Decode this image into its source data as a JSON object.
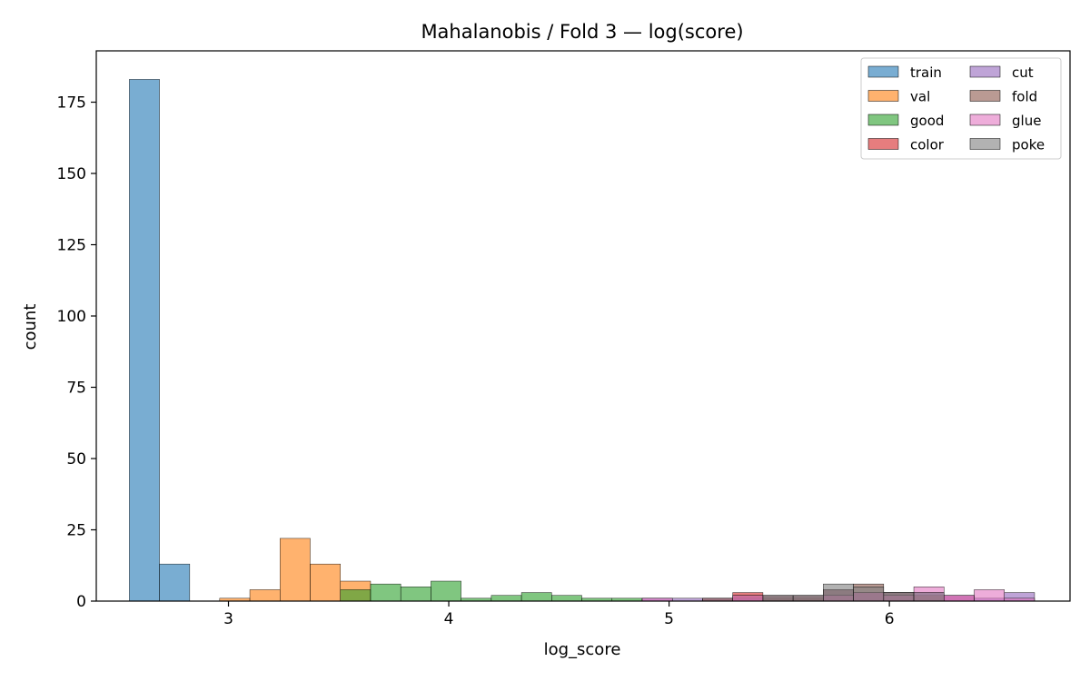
{
  "chart_data": {
    "type": "bar",
    "subtype": "overlaid-histogram",
    "title": "Mahalanobis / Fold 3 — log(score)",
    "xlabel": "log_score",
    "ylabel": "count",
    "xlim": [
      2.4,
      6.82
    ],
    "ylim": [
      0,
      193
    ],
    "bin_width": 0.137,
    "x_ticks": [
      3,
      4,
      5,
      6
    ],
    "y_ticks": [
      0,
      25,
      50,
      75,
      100,
      125,
      150,
      175
    ],
    "bar_alpha": 0.6,
    "grid": false,
    "legend": {
      "placement": "top-right",
      "columns": 2
    },
    "series": [
      {
        "name": "train",
        "color": "#1f77b4",
        "bins": [
          [
            2.55,
            183
          ],
          [
            2.687,
            13
          ]
        ]
      },
      {
        "name": "val",
        "color": "#ff7f0e",
        "bins": [
          [
            2.96,
            1
          ],
          [
            3.097,
            4
          ],
          [
            3.234,
            22
          ],
          [
            3.371,
            13
          ],
          [
            3.508,
            7
          ]
        ]
      },
      {
        "name": "good",
        "color": "#2ca02c",
        "bins": [
          [
            3.508,
            4
          ],
          [
            3.645,
            6
          ],
          [
            3.782,
            5
          ],
          [
            3.919,
            7
          ],
          [
            4.056,
            1
          ],
          [
            4.193,
            2
          ],
          [
            4.33,
            3
          ],
          [
            4.467,
            2
          ],
          [
            4.604,
            1
          ],
          [
            4.741,
            1
          ]
        ]
      },
      {
        "name": "color",
        "color": "#d62728",
        "bins": [
          [
            5.289,
            3
          ],
          [
            5.426,
            1
          ],
          [
            5.563,
            1
          ],
          [
            5.7,
            2
          ],
          [
            5.837,
            3
          ],
          [
            5.974,
            2
          ],
          [
            6.111,
            2
          ],
          [
            6.248,
            2
          ]
        ]
      },
      {
        "name": "cut",
        "color": "#9467bd",
        "bins": [
          [
            4.878,
            1
          ],
          [
            5.015,
            1
          ],
          [
            5.152,
            1
          ],
          [
            5.289,
            1
          ],
          [
            5.426,
            2
          ],
          [
            5.563,
            2
          ],
          [
            5.7,
            4
          ],
          [
            5.837,
            3
          ],
          [
            5.974,
            3
          ],
          [
            6.111,
            3
          ],
          [
            6.248,
            2
          ],
          [
            6.385,
            1
          ],
          [
            6.522,
            3
          ]
        ]
      },
      {
        "name": "fold",
        "color": "#8c564b",
        "bins": [
          [
            5.152,
            1
          ],
          [
            5.289,
            2
          ],
          [
            5.426,
            2
          ],
          [
            5.563,
            2
          ],
          [
            5.7,
            4
          ],
          [
            5.837,
            6
          ],
          [
            5.974,
            3
          ],
          [
            6.111,
            2
          ]
        ]
      },
      {
        "name": "glue",
        "color": "#e377c2",
        "bins": [
          [
            4.878,
            1
          ],
          [
            5.289,
            2
          ],
          [
            5.7,
            2
          ],
          [
            5.837,
            3
          ],
          [
            5.974,
            2
          ],
          [
            6.111,
            5
          ],
          [
            6.248,
            2
          ],
          [
            6.385,
            4
          ],
          [
            6.522,
            1
          ]
        ]
      },
      {
        "name": "poke",
        "color": "#7f7f7f",
        "bins": [
          [
            5.426,
            2
          ],
          [
            5.563,
            2
          ],
          [
            5.7,
            6
          ],
          [
            5.837,
            5
          ],
          [
            5.974,
            3
          ],
          [
            6.111,
            3
          ]
        ]
      }
    ]
  }
}
